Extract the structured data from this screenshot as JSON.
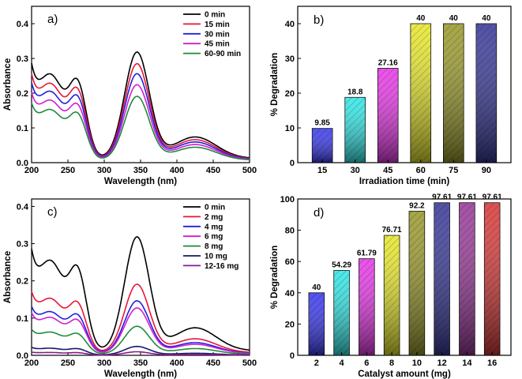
{
  "chart_data": [
    {
      "id": "a",
      "panel_label": "a)",
      "type": "line",
      "xlabel": "Wavelength (nm)",
      "ylabel": "Absorbance",
      "xlim": [
        200,
        500
      ],
      "ylim": [
        0,
        0.45
      ],
      "xticks": [
        200,
        250,
        300,
        350,
        400,
        450,
        500
      ],
      "yticks": [
        0.0,
        0.1,
        0.2,
        0.3,
        0.4
      ],
      "ytick_labels": [
        "0.0",
        "0.1",
        "0.2",
        "0.3",
        "0.4"
      ],
      "legend_position": "top-right",
      "series": [
        {
          "name": "0 min",
          "color": "#000000",
          "scale": 1.0
        },
        {
          "name": "15 min",
          "color": "#e8173a",
          "scale": 0.895
        },
        {
          "name": "30 min",
          "color": "#2020e0",
          "scale": 0.805
        },
        {
          "name": "45 min",
          "color": "#d11ed1",
          "scale": 0.705
        },
        {
          "name": "60-90 min",
          "color": "#1f8a3a",
          "scale": 0.6
        }
      ]
    },
    {
      "id": "b",
      "panel_label": "b)",
      "type": "bar",
      "xlabel": "Irradiation time (min)",
      "ylabel": "% Degradation",
      "ylim": [
        0,
        45
      ],
      "yticks": [
        0,
        10,
        20,
        30,
        40
      ],
      "categories": [
        "15",
        "30",
        "45",
        "60",
        "75",
        "90"
      ],
      "values": [
        9.85,
        18.8,
        27.16,
        40,
        40,
        40
      ],
      "labels": [
        "9.85",
        "18.8",
        "27.16",
        "40",
        "40",
        "40"
      ],
      "colors": [
        "#3a3af0",
        "#33e6e6",
        "#e83ae8",
        "#e6e62e",
        "#9a9a2e",
        "#3a3a9a"
      ]
    },
    {
      "id": "c",
      "panel_label": "c)",
      "type": "line",
      "xlabel": "Wavelength (nm)",
      "ylabel": "Absorbance",
      "xlim": [
        200,
        500
      ],
      "ylim": [
        0,
        0.42
      ],
      "xticks": [
        200,
        250,
        300,
        350,
        400,
        450,
        500
      ],
      "yticks": [
        0.0,
        0.1,
        0.2,
        0.3,
        0.4
      ],
      "ytick_labels": [
        "0.0",
        "0.1",
        "0.2",
        "0.3",
        "0.4"
      ],
      "legend_position": "top-right",
      "series": [
        {
          "name": "0 min",
          "color": "#000000",
          "scale": 1.0
        },
        {
          "name": "2 mg",
          "color": "#e8173a",
          "scale": 0.6
        },
        {
          "name": "4 mg",
          "color": "#2020e0",
          "scale": 0.46
        },
        {
          "name": "6 mg",
          "color": "#d11ed1",
          "scale": 0.4
        },
        {
          "name": "8 mg",
          "color": "#1f8a3a",
          "scale": 0.245
        },
        {
          "name": "10 mg",
          "color": "#16166e",
          "scale": 0.075
        },
        {
          "name": "12-16 mg",
          "color": "#8a1a8a",
          "scale": 0.03
        }
      ]
    },
    {
      "id": "d",
      "panel_label": "d)",
      "type": "bar",
      "xlabel": "Catalyst amount (mg)",
      "ylabel": "% Degradation",
      "ylim": [
        0,
        100
      ],
      "yticks": [
        0,
        20,
        40,
        60,
        80,
        100
      ],
      "categories": [
        "2",
        "4",
        "6",
        "8",
        "10",
        "12",
        "14",
        "16"
      ],
      "values": [
        40,
        54.29,
        61.79,
        76.71,
        92.2,
        97.61,
        97.61,
        97.61
      ],
      "labels": [
        "40",
        "54.29",
        "61.79",
        "76.71",
        "92.2",
        "97.61",
        "97.61",
        "97.61"
      ],
      "colors": [
        "#3a3af0",
        "#33e6e6",
        "#e83ae8",
        "#e6e62e",
        "#9a9a2e",
        "#3a3a9a",
        "#9a3a9a",
        "#d83a3a"
      ]
    }
  ]
}
